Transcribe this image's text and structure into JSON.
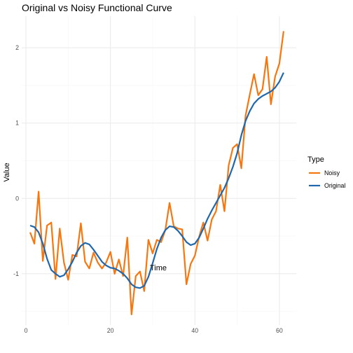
{
  "chart_data": {
    "type": "line",
    "title": "Original vs Noisy Functional Curve",
    "xlabel": "Time",
    "ylabel": "Value",
    "xlim": [
      -1.0,
      64.0
    ],
    "ylim": [
      -1.68,
      2.42
    ],
    "x_ticks": [
      0,
      20,
      40,
      60
    ],
    "y_ticks": [
      -1,
      0,
      1,
      2
    ],
    "grid": true,
    "legend": {
      "title": "Type",
      "placement": "right",
      "entries": [
        "Noisy",
        "Original"
      ]
    },
    "x": [
      1,
      2,
      3,
      4,
      5,
      6,
      7,
      8,
      9,
      10,
      11,
      12,
      13,
      14,
      15,
      16,
      17,
      18,
      19,
      20,
      21,
      22,
      23,
      24,
      25,
      26,
      27,
      28,
      29,
      30,
      31,
      32,
      33,
      34,
      35,
      36,
      37,
      38,
      39,
      40,
      41,
      42,
      43,
      44,
      45,
      46,
      47,
      48,
      49,
      50,
      51,
      52,
      53,
      54,
      55,
      56,
      57,
      58,
      59,
      60,
      61
    ],
    "series": [
      {
        "name": "Noisy",
        "color": "#F8760E",
        "values": [
          -0.45,
          -0.6,
          0.09,
          -0.83,
          -0.36,
          -0.32,
          -1.07,
          -0.4,
          -0.85,
          -1.08,
          -0.75,
          -0.77,
          -0.33,
          -0.84,
          -0.93,
          -0.72,
          -0.85,
          -0.93,
          -0.85,
          -0.71,
          -1.0,
          -0.81,
          -1.03,
          -0.52,
          -1.54,
          -1.03,
          -0.97,
          -1.23,
          -0.55,
          -0.73,
          -0.55,
          -0.58,
          -0.42,
          -0.06,
          -0.37,
          -0.4,
          -0.41,
          -1.14,
          -0.87,
          -0.76,
          -0.51,
          -0.32,
          -0.56,
          -0.28,
          -0.17,
          0.18,
          -0.17,
          0.44,
          0.67,
          0.72,
          0.4,
          1.1,
          1.38,
          1.65,
          1.37,
          1.45,
          1.88,
          1.25,
          1.62,
          1.79,
          2.22
        ]
      },
      {
        "name": "Original",
        "color": "#1F68AE",
        "values": [
          -0.36,
          -0.38,
          -0.45,
          -0.6,
          -0.8,
          -0.95,
          -1.0,
          -1.04,
          -1.02,
          -0.94,
          -0.84,
          -0.72,
          -0.63,
          -0.59,
          -0.61,
          -0.68,
          -0.76,
          -0.84,
          -0.89,
          -0.92,
          -0.93,
          -0.96,
          -1.0,
          -1.06,
          -1.14,
          -1.18,
          -1.19,
          -1.16,
          -1.04,
          -0.86,
          -0.67,
          -0.52,
          -0.42,
          -0.37,
          -0.38,
          -0.43,
          -0.5,
          -0.58,
          -0.62,
          -0.6,
          -0.52,
          -0.4,
          -0.27,
          -0.16,
          -0.06,
          0.04,
          0.14,
          0.27,
          0.42,
          0.6,
          0.84,
          1.03,
          1.16,
          1.26,
          1.32,
          1.36,
          1.39,
          1.42,
          1.47,
          1.55,
          1.67
        ]
      }
    ]
  }
}
